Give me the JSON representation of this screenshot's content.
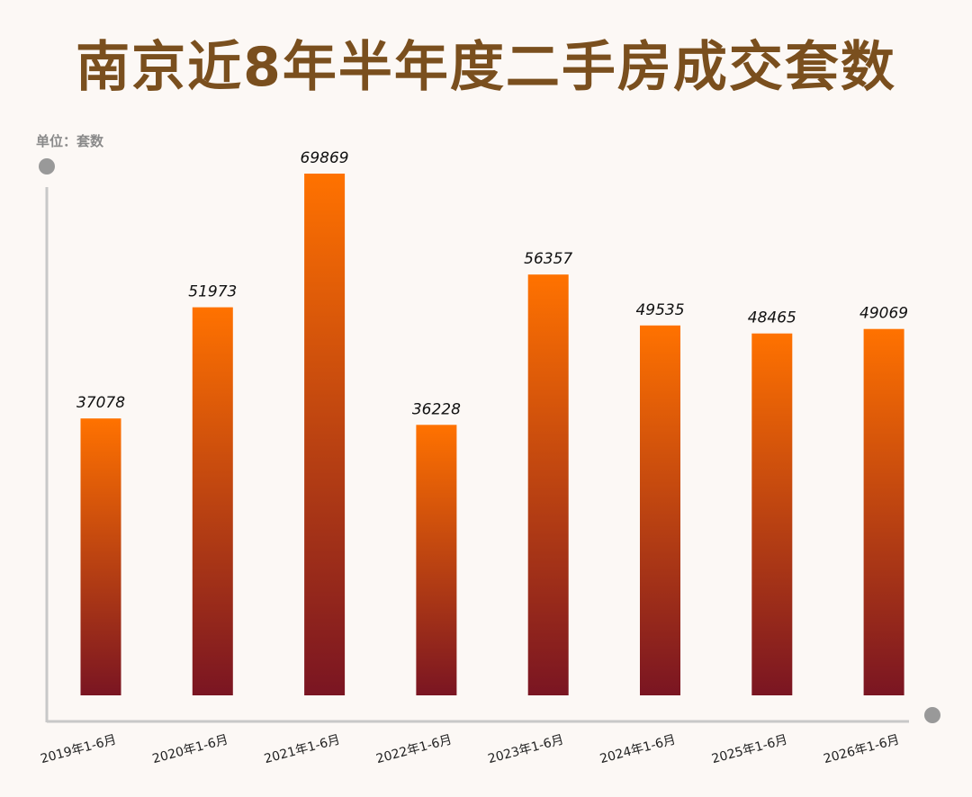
{
  "chart_data": {
    "type": "bar",
    "title": "南京近8年半年度二手房成交套数",
    "unit_label": "单位：套数",
    "categories": [
      "2019年1-6月",
      "2020年1-6月",
      "2021年1-6月",
      "2022年1-6月",
      "2023年1-6月",
      "2024年1-6月",
      "2025年1-6月",
      "2026年1-6月"
    ],
    "values": [
      37078,
      51973,
      69869,
      36228,
      56357,
      49535,
      48465,
      49069
    ],
    "ylim": [
      0,
      69869
    ],
    "grid": false,
    "colors": {
      "bar_top": "#ff7200",
      "bar_bottom": "#7a1522",
      "axis": "#c8c8c8",
      "axis_dot": "#999999",
      "title": "#7a4f1e"
    }
  }
}
